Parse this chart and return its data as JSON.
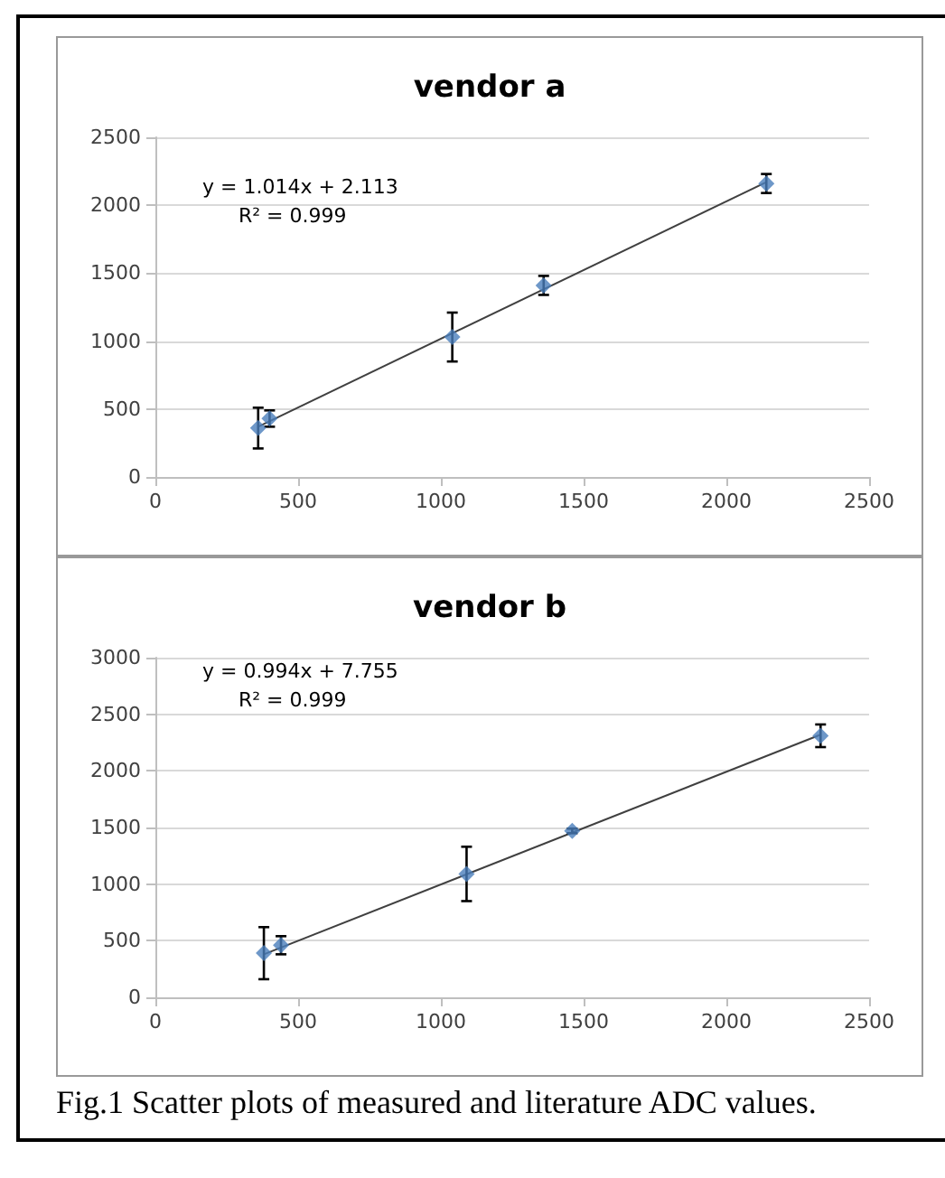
{
  "chart_data": [
    {
      "type": "scatter",
      "title": "vendor a",
      "xlim": [
        0,
        2500
      ],
      "xticks": [
        0,
        500,
        1000,
        1500,
        2000,
        2500
      ],
      "ylim": [
        0,
        2500
      ],
      "yticks": [
        0,
        500,
        1000,
        1500,
        2000,
        2500
      ],
      "grid": "y",
      "annotations": [
        "y = 1.014x + 2.113",
        "R² = 0.999"
      ],
      "series": [
        {
          "color": "#4a7ebb",
          "marker": "diamond",
          "x": [
            360,
            400,
            1040,
            1360,
            2140
          ],
          "values": [
            360,
            430,
            1030,
            1410,
            2160
          ],
          "errors": [
            150,
            60,
            180,
            70,
            70
          ]
        },
        {
          "type": "line",
          "marker": "none",
          "color": "#404040",
          "x": [
            360,
            2140
          ],
          "values": [
            370,
            2170
          ]
        }
      ]
    },
    {
      "type": "scatter",
      "title": "vendor b",
      "xlim": [
        0,
        2500
      ],
      "xticks": [
        0,
        500,
        1000,
        1500,
        2000,
        2500
      ],
      "ylim": [
        0,
        3000
      ],
      "yticks": [
        0,
        500,
        1000,
        1500,
        2000,
        2500,
        3000
      ],
      "grid": "y",
      "annotations": [
        "y = 0.994x + 7.755",
        "R² = 0.999",
        "Fig.1 Scatter plots of measured and literature ADC values."
      ],
      "series": [
        {
          "color": "#4a7ebb",
          "marker": "diamond",
          "x": [
            380,
            440,
            1090,
            1460,
            2330
          ],
          "values": [
            390,
            460,
            1090,
            1470,
            2310
          ],
          "errors": [
            230,
            80,
            240,
            20,
            100
          ]
        },
        {
          "type": "line",
          "marker": "none",
          "color": "#404040",
          "x": [
            380,
            2330
          ],
          "values": [
            380,
            2320
          ]
        }
      ]
    }
  ]
}
